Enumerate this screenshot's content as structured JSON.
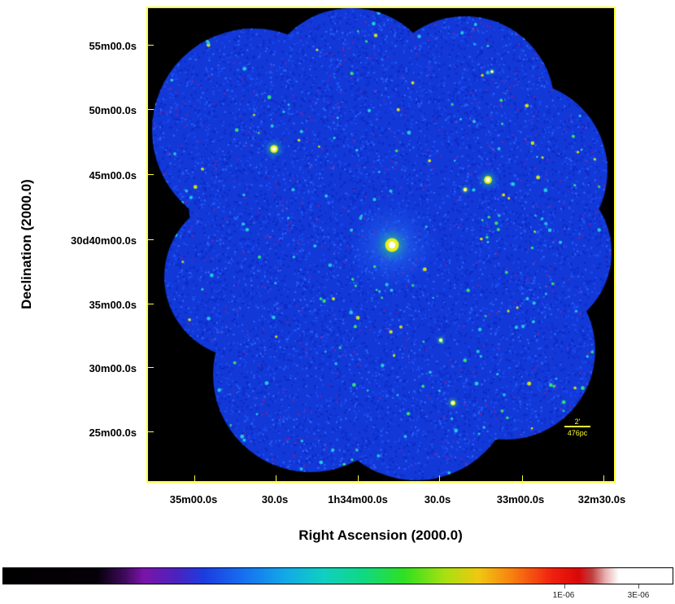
{
  "axes": {
    "x_title": "Right Ascension (2000.0)",
    "y_title": "Declination (2000.0)",
    "x_ticks": [
      "35m00.0s",
      "30.0s",
      "1h34m00.0s",
      "30.0s",
      "33m00.0s",
      "32m30.0s"
    ],
    "y_ticks": [
      "55m00.0s",
      "50m00.0s",
      "45m00.0s",
      "30d40m00.0s",
      "35m00.0s",
      "30m00.0s",
      "25m00.0s"
    ]
  },
  "scalebar": {
    "angular": "2'",
    "physical": "476pc"
  },
  "colorbar": {
    "labels": [
      "1E-06",
      "3E-06"
    ]
  },
  "colors": {
    "frame": "#ffff33",
    "background": "#000000",
    "field": "#1238d8"
  }
}
